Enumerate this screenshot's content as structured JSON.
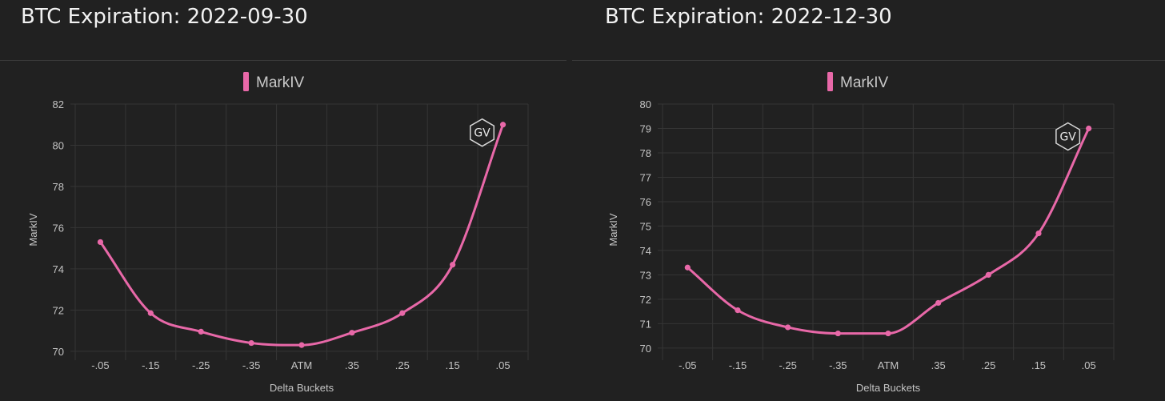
{
  "colors": {
    "series": "#e868a8",
    "grid": "#353535",
    "background": "#212121"
  },
  "watermark": "GV",
  "charts": [
    {
      "title": "BTC Expiration: 2022-09-30",
      "chart_data": {
        "type": "line",
        "categories": [
          "-.05",
          "-.15",
          "-.25",
          "-.35",
          "ATM",
          ".35",
          ".25",
          ".15",
          ".05"
        ],
        "series": [
          {
            "name": "MarkIV",
            "values": [
              75.3,
              71.85,
              70.95,
              70.4,
              70.3,
              70.9,
              71.85,
              74.2,
              81.0
            ]
          }
        ],
        "xlabel": "Delta Buckets",
        "ylabel": "MarkIV",
        "ylim": [
          69.8,
          82
        ],
        "yticks": [
          70,
          72,
          74,
          76,
          78,
          80,
          82
        ],
        "legend": "top-center",
        "grid": true
      }
    },
    {
      "title": "BTC Expiration: 2022-12-30",
      "chart_data": {
        "type": "line",
        "categories": [
          "-.05",
          "-.15",
          "-.25",
          "-.35",
          "ATM",
          ".35",
          ".25",
          ".15",
          ".05"
        ],
        "series": [
          {
            "name": "MarkIV",
            "values": [
              73.3,
              71.55,
              70.85,
              70.6,
              70.6,
              71.85,
              73.0,
              74.7,
              79.0
            ]
          }
        ],
        "xlabel": "Delta Buckets",
        "ylabel": "MarkIV",
        "ylim": [
          69.7,
          80
        ],
        "yticks": [
          70,
          71,
          72,
          73,
          74,
          75,
          76,
          77,
          78,
          79,
          80
        ],
        "legend": "top-center",
        "grid": true
      }
    }
  ]
}
